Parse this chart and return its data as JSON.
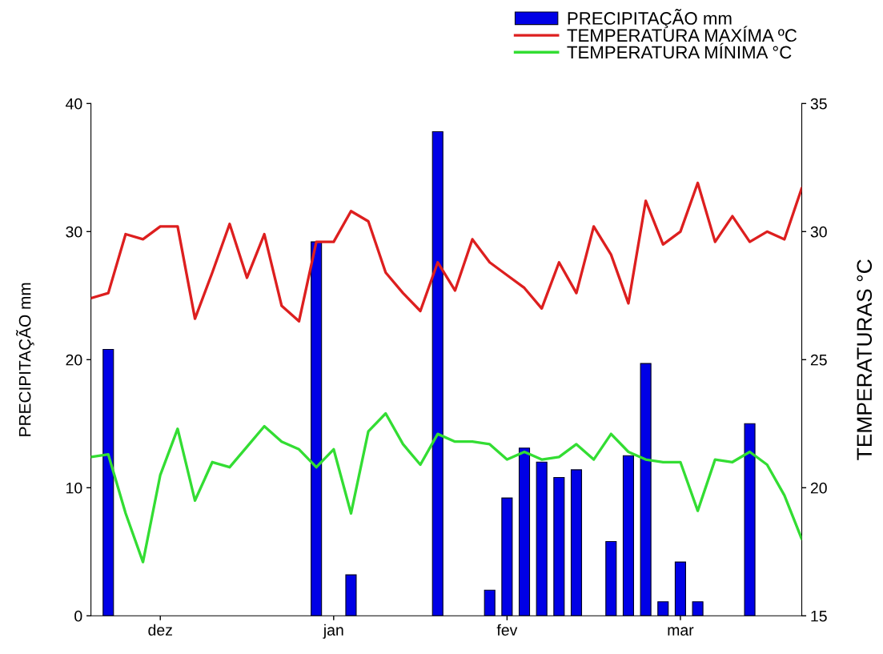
{
  "chart_data": {
    "type": "bar",
    "categories": [
      null,
      null,
      null,
      null,
      "dez",
      null,
      null,
      null,
      null,
      null,
      null,
      null,
      null,
      null,
      "jan",
      null,
      null,
      null,
      null,
      null,
      null,
      null,
      null,
      null,
      "fev",
      null,
      null,
      null,
      null,
      null,
      null,
      null,
      null,
      null,
      "mar",
      null,
      null,
      null,
      null,
      null,
      null,
      null
    ],
    "series": [
      {
        "name": "PRECIPITAÇÃO mm",
        "color": "#0000e6",
        "values": [
          null,
          20.8,
          null,
          null,
          null,
          null,
          null,
          null,
          null,
          null,
          null,
          null,
          null,
          29.2,
          null,
          3.2,
          null,
          null,
          null,
          null,
          37.8,
          null,
          null,
          2.0,
          9.2,
          13.1,
          12.0,
          10.8,
          11.4,
          null,
          5.8,
          12.5,
          19.7,
          1.1,
          4.2,
          1.1,
          null,
          null,
          15.0,
          null,
          null,
          null
        ]
      },
      {
        "name": "TEMPERATURA MAXÍMA ºC",
        "type": "line",
        "axis": "y2",
        "color": "#dd1f1f",
        "values": [
          27.4,
          27.6,
          29.9,
          29.7,
          30.2,
          30.2,
          26.6,
          28.4,
          30.3,
          28.2,
          29.9,
          27.1,
          26.5,
          29.6,
          29.6,
          30.8,
          30.4,
          28.4,
          27.6,
          26.9,
          28.8,
          27.7,
          29.7,
          28.8,
          28.3,
          27.8,
          27.0,
          28.8,
          27.6,
          30.2,
          29.1,
          27.2,
          31.2,
          29.5,
          30.0,
          31.9,
          29.6,
          30.6,
          29.6,
          30.0,
          29.7,
          31.7
        ]
      },
      {
        "name": "TEMPERATURA MÍNIMA °C",
        "type": "line",
        "axis": "y2",
        "color": "#33dd33",
        "values": [
          21.2,
          21.3,
          19.0,
          17.1,
          20.5,
          22.3,
          19.5,
          21.0,
          20.8,
          21.6,
          22.4,
          21.8,
          21.5,
          20.8,
          21.5,
          19.0,
          22.2,
          22.9,
          21.7,
          20.9,
          22.1,
          21.8,
          21.8,
          21.7,
          21.1,
          21.4,
          21.1,
          21.2,
          21.7,
          21.1,
          22.1,
          21.4,
          21.1,
          21.0,
          21.0,
          19.1,
          21.1,
          21.0,
          21.4,
          20.9,
          19.7,
          18.0
        ]
      }
    ],
    "ylabel": "PRECIPITAÇÃO mm",
    "y2label": "TEMPERATURAS °C",
    "ylim": [
      0,
      40
    ],
    "yticks": [
      0,
      10,
      20,
      30,
      40
    ],
    "y2lim": [
      15,
      35
    ],
    "y2ticks": [
      15,
      20,
      25,
      30,
      35
    ],
    "legend": "top right",
    "grid": false,
    "line_style": "solid"
  }
}
